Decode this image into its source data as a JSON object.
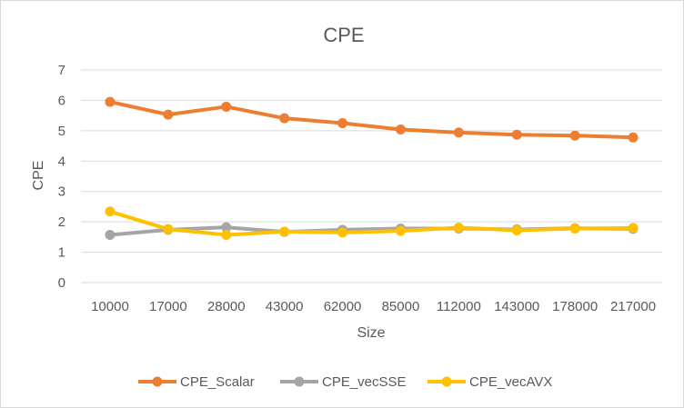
{
  "chart_data": {
    "type": "line",
    "title": "CPE",
    "xlabel": "Size",
    "ylabel": "CPE",
    "ylim": [
      0,
      7
    ],
    "yticks": [
      "0",
      "1",
      "2",
      "3",
      "4",
      "5",
      "6",
      "7"
    ],
    "categories": [
      "10000",
      "17000",
      "28000",
      "43000",
      "62000",
      "85000",
      "112000",
      "143000",
      "178000",
      "217000"
    ],
    "legend_position": "bottom",
    "grid": true,
    "series": [
      {
        "name": "CPE_Scalar",
        "color": "#ED7D31",
        "values": [
          5.95,
          5.53,
          5.79,
          5.41,
          5.25,
          5.04,
          4.94,
          4.87,
          4.84,
          4.78
        ]
      },
      {
        "name": "CPE_vecSSE",
        "color": "#A5A5A5",
        "values": [
          1.57,
          1.74,
          1.82,
          1.67,
          1.74,
          1.78,
          1.78,
          1.75,
          1.79,
          1.77
        ]
      },
      {
        "name": "CPE_vecAVX",
        "color": "#FFC000",
        "values": [
          2.34,
          1.76,
          1.57,
          1.68,
          1.65,
          1.7,
          1.81,
          1.72,
          1.78,
          1.8
        ]
      }
    ]
  }
}
